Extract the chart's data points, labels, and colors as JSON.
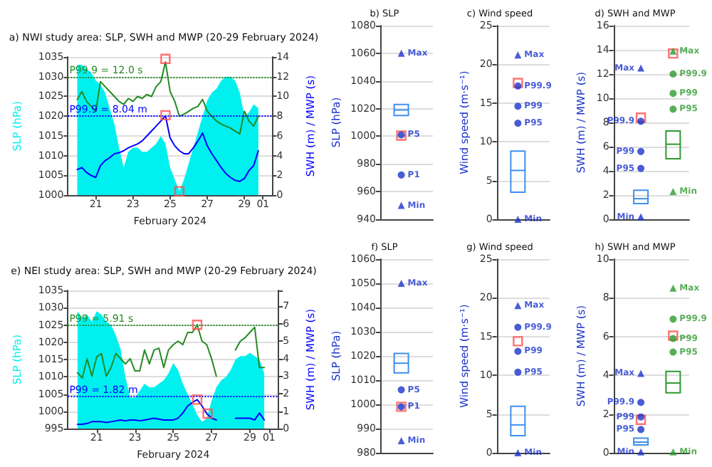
{
  "chart_data": [
    {
      "type": "area",
      "title": "a) NWI study area: SLP, SWH and MWP (20-29 February 2024)",
      "xlabel": "February 2024",
      "ylabel": "SLP (hPa)",
      "y2label": "SWH (m) / MWP (s)",
      "x": [
        "2024-02-20T00:00",
        "2024-02-20T06:00",
        "2024-02-20T12:00",
        "2024-02-20T18:00",
        "2024-02-21T00:00",
        "2024-02-21T06:00",
        "2024-02-21T12:00",
        "2024-02-21T18:00",
        "2024-02-22T00:00",
        "2024-02-22T06:00",
        "2024-02-22T12:00",
        "2024-02-22T18:00",
        "2024-02-23T00:00",
        "2024-02-23T06:00",
        "2024-02-23T12:00",
        "2024-02-23T18:00",
        "2024-02-24T00:00",
        "2024-02-24T06:00",
        "2024-02-24T12:00",
        "2024-02-24T18:00",
        "2024-02-25T00:00",
        "2024-02-25T06:00",
        "2024-02-25T12:00",
        "2024-02-25T18:00",
        "2024-02-26T00:00",
        "2024-02-26T06:00",
        "2024-02-26T12:00",
        "2024-02-26T18:00",
        "2024-02-27T00:00",
        "2024-02-27T06:00",
        "2024-02-27T12:00",
        "2024-02-27T18:00",
        "2024-02-28T00:00",
        "2024-02-28T06:00",
        "2024-02-28T12:00",
        "2024-02-28T18:00",
        "2024-02-29T00:00",
        "2024-02-29T06:00",
        "2024-02-29T12:00",
        "2024-02-29T18:00"
      ],
      "xlim": [
        "2024-02-19T12:00",
        "2024-03-01T12:00"
      ],
      "xticks": [
        {
          "value": "2024-02-21",
          "label": "21"
        },
        {
          "value": "2024-02-23",
          "label": "23"
        },
        {
          "value": "2024-02-25",
          "label": "25"
        },
        {
          "value": "2024-02-27",
          "label": "27"
        },
        {
          "value": "2024-02-29",
          "label": "29"
        },
        {
          "value": "2024-03-01",
          "label": "01"
        }
      ],
      "ylim": [
        1000,
        1035
      ],
      "yticks": [
        1000,
        1005,
        1010,
        1015,
        1020,
        1025,
        1030,
        1035
      ],
      "y2lim": [
        0,
        14
      ],
      "y2ticks": [
        0,
        2,
        4,
        6,
        8,
        10,
        12,
        14
      ],
      "grid": "y",
      "series": [
        {
          "type": "area",
          "color": "#00f0f0",
          "values": [
            1033,
            1033,
            1032,
            1031,
            1029,
            1028,
            1026,
            1022,
            1018,
            1012,
            1007,
            1011,
            1012,
            1012,
            1011,
            1011,
            1012,
            1013,
            1015,
            1013,
            1007,
            1004,
            1001,
            1004,
            1008,
            1012,
            1016,
            1020,
            1024,
            1026,
            1027,
            1029,
            1030,
            1030,
            1029,
            1026,
            1020,
            1021,
            1023,
            1022
          ]
        },
        {
          "type": "line",
          "axis": "y2",
          "color": "#0000ff",
          "values": [
            2.6,
            2.8,
            2.3,
            2.0,
            1.8,
            3.0,
            3.5,
            3.8,
            4.2,
            4.3,
            4.5,
            4.8,
            5.0,
            5.2,
            5.5,
            6.0,
            6.5,
            7.0,
            7.5,
            8.04,
            5.8,
            5.0,
            4.5,
            4.2,
            4.2,
            4.8,
            5.5,
            6.3,
            5.0,
            4.2,
            3.5,
            2.8,
            2.2,
            1.8,
            1.5,
            1.4,
            1.7,
            2.5,
            3.0,
            4.5
          ]
        },
        {
          "type": "line",
          "axis": "y2",
          "color": "#228b22",
          "values": [
            9.7,
            10.5,
            9.5,
            9.0,
            8.5,
            11.5,
            11.0,
            10.5,
            10.0,
            9.5,
            9.2,
            9.8,
            9.5,
            10.0,
            9.8,
            10.2,
            10.0,
            11.0,
            11.5,
            13.5,
            10.5,
            9.5,
            8.0,
            8.2,
            8.5,
            8.8,
            9.0,
            9.7,
            8.5,
            8.0,
            7.5,
            7.2,
            7.0,
            6.8,
            6.5,
            6.2,
            8.5,
            7.5,
            7.0,
            8.0
          ]
        },
        {
          "type": "scatter",
          "marker": "square",
          "color": "#ff4d4d",
          "x": [
            "2024-02-25T12:00"
          ],
          "values": [
            1001
          ]
        },
        {
          "type": "scatter",
          "axis": "y2",
          "marker": "square",
          "color": "#ff4d4d",
          "x": [
            "2024-02-24T18:00",
            "2024-02-24T18:00"
          ],
          "values": [
            8.1,
            13.8
          ]
        }
      ],
      "ref_lines": [
        {
          "axis": "y2",
          "value": 12,
          "label": "P99.9 = 12.0 s",
          "color": "#228b22",
          "line_style": "dotted"
        },
        {
          "axis": "y2",
          "value": 8.04,
          "label": "P99.9 = 8.04 m",
          "color": "#0000ff",
          "line_style": "dotted"
        }
      ]
    },
    {
      "type": "box",
      "title": "b) SLP",
      "ylabel": "SLP (hPa)",
      "categories": [
        null
      ],
      "ylim": [
        940,
        1080
      ],
      "yticks": [
        940,
        960,
        980,
        1000,
        1020,
        1040,
        1060,
        1080
      ],
      "grid": "y",
      "series": [
        {
          "type": "box",
          "colors": [
            "#3d8ff0"
          ],
          "boxes": [
            {
              "low": 1015,
              "q1": 1015,
              "median": 1019,
              "q3": 1023,
              "high": 1023
            }
          ]
        },
        {
          "type": "scatter",
          "name": "Max",
          "marker": "triangle",
          "colors": [
            "#1a33cc"
          ],
          "values": [
            1060
          ]
        },
        {
          "type": "scatter",
          "name": "P5",
          "marker": "circle",
          "colors": [
            "#1a33cc"
          ],
          "values": [
            1001
          ]
        },
        {
          "type": "scatter",
          "name": "P1",
          "marker": "circle",
          "colors": [
            "#1a33cc"
          ],
          "values": [
            972
          ]
        },
        {
          "type": "scatter",
          "name": "Min",
          "marker": "triangle",
          "colors": [
            "#1a33cc"
          ],
          "values": [
            950
          ]
        },
        {
          "type": "scatter",
          "marker": "square",
          "colors": [
            "#ff4d4d"
          ],
          "values": [
            1000.5
          ]
        }
      ]
    },
    {
      "type": "box",
      "title": "c) Wind speed",
      "ylabel": "Wind speed (m·s⁻¹)",
      "categories": [
        null
      ],
      "ylim": [
        0,
        25
      ],
      "yticks": [
        0,
        5,
        10,
        15,
        20,
        25
      ],
      "grid": "y",
      "series": [
        {
          "type": "box",
          "colors": [
            "#3d8ff0"
          ],
          "boxes": [
            {
              "low": 3.5,
              "q1": 3.5,
              "median": 6.3,
              "q3": 8.8,
              "high": 8.8
            }
          ]
        },
        {
          "type": "scatter",
          "name": "Max",
          "marker": "triangle",
          "colors": [
            "#1a33cc"
          ],
          "values": [
            21.2
          ]
        },
        {
          "type": "scatter",
          "name": "P99.9",
          "marker": "circle",
          "colors": [
            "#1a33cc"
          ],
          "values": [
            17.2
          ]
        },
        {
          "type": "scatter",
          "name": "P99",
          "marker": "circle",
          "colors": [
            "#1a33cc"
          ],
          "values": [
            14.6
          ]
        },
        {
          "type": "scatter",
          "name": "P95",
          "marker": "circle",
          "colors": [
            "#1a33cc"
          ],
          "values": [
            12.4
          ]
        },
        {
          "type": "scatter",
          "name": "Min",
          "marker": "triangle",
          "colors": [
            "#1a33cc"
          ],
          "values": [
            0
          ]
        },
        {
          "type": "scatter",
          "marker": "square",
          "colors": [
            "#ff4d4d"
          ],
          "values": [
            17.6
          ]
        }
      ]
    },
    {
      "type": "box",
      "title": "d) SWH and MWP",
      "ylabel": "SWH (m) / MWP (s)",
      "categories": [
        null,
        null
      ],
      "ylim": [
        0,
        16
      ],
      "yticks": [
        0,
        2,
        4,
        6,
        8,
        10,
        12,
        14,
        16
      ],
      "grid": "y",
      "series": [
        {
          "type": "box",
          "colors": [
            "#3d8ff0",
            "#2e9a2e"
          ],
          "boxes": [
            {
              "low": 1.3,
              "q1": 1.3,
              "median": 1.7,
              "q3": 2.4,
              "high": 2.4
            },
            {
              "low": 5.0,
              "q1": 5.0,
              "median": 6.2,
              "q3": 7.3,
              "high": 7.3
            }
          ]
        },
        {
          "type": "scatter",
          "name": "Max",
          "marker": "triangle",
          "colors": [
            "#1a33cc",
            "#2e9a2e"
          ],
          "values": [
            12.5,
            13.9
          ]
        },
        {
          "type": "scatter",
          "name": "P99.9",
          "marker": "circle",
          "colors": [
            "#1a33cc",
            "#2e9a2e"
          ],
          "values": [
            8.1,
            12.0
          ]
        },
        {
          "type": "scatter",
          "name": "P99",
          "marker": "circle",
          "colors": [
            "#1a33cc",
            "#2e9a2e"
          ],
          "values": [
            5.6,
            10.4
          ]
        },
        {
          "type": "scatter",
          "name": "P95",
          "marker": "circle",
          "colors": [
            "#1a33cc",
            "#2e9a2e"
          ],
          "values": [
            4.2,
            9.1
          ]
        },
        {
          "type": "scatter",
          "name": "Min",
          "marker": "triangle",
          "colors": [
            "#1a33cc",
            "#2e9a2e"
          ],
          "values": [
            0.2,
            2.3
          ]
        },
        {
          "type": "scatter",
          "marker": "square",
          "colors": [
            "#ff4d4d",
            "#ff4d4d"
          ],
          "values": [
            8.4,
            13.7
          ]
        }
      ]
    },
    {
      "type": "area",
      "title": "e) NEI study area: SLP, SWH and MWP (20-29 February 2024)",
      "xlabel": "February 2024",
      "ylabel": "SLP (hPa)",
      "y2label": "SWH (m) / MWP (s)",
      "x": [
        "2024-02-20T00:00",
        "2024-02-20T06:00",
        "2024-02-20T12:00",
        "2024-02-20T18:00",
        "2024-02-21T00:00",
        "2024-02-21T06:00",
        "2024-02-21T12:00",
        "2024-02-21T18:00",
        "2024-02-22T00:00",
        "2024-02-22T06:00",
        "2024-02-22T12:00",
        "2024-02-22T18:00",
        "2024-02-23T00:00",
        "2024-02-23T06:00",
        "2024-02-23T12:00",
        "2024-02-23T18:00",
        "2024-02-24T00:00",
        "2024-02-24T06:00",
        "2024-02-24T12:00",
        "2024-02-24T18:00",
        "2024-02-25T00:00",
        "2024-02-25T06:00",
        "2024-02-25T12:00",
        "2024-02-25T18:00",
        "2024-02-26T00:00",
        "2024-02-26T06:00",
        "2024-02-26T12:00",
        "2024-02-26T18:00",
        "2024-02-27T00:00",
        "2024-02-27T06:00",
        "2024-02-27T12:00",
        "2024-02-27T18:00",
        "2024-02-28T00:00",
        "2024-02-28T06:00",
        "2024-02-28T12:00",
        "2024-02-28T18:00",
        "2024-02-29T00:00",
        "2024-02-29T06:00",
        "2024-02-29T12:00",
        "2024-02-29T18:00"
      ],
      "xlim": [
        "2024-02-19T12:00",
        "2024-03-01T12:00"
      ],
      "xticks": [
        {
          "value": "2024-02-21",
          "label": "21"
        },
        {
          "value": "2024-02-23",
          "label": "23"
        },
        {
          "value": "2024-02-25",
          "label": "25"
        },
        {
          "value": "2024-02-27",
          "label": "27"
        },
        {
          "value": "2024-02-29",
          "label": "29"
        },
        {
          "value": "2024-03-01",
          "label": "01"
        }
      ],
      "ylim": [
        995,
        1035
      ],
      "yticks": [
        995,
        1000,
        1005,
        1010,
        1015,
        1020,
        1025,
        1030,
        1035
      ],
      "y2lim": [
        0,
        7.9
      ],
      "y2ticks": [
        0,
        1,
        2,
        3,
        4,
        5,
        6,
        7
      ],
      "grid": "y",
      "series": [
        {
          "type": "area",
          "color": "#00f0f0",
          "values": [
            1029,
            1027,
            1028,
            1026,
            1029,
            1028,
            1026,
            1025,
            1022,
            1018,
            1010,
            1004,
            1004,
            1006,
            1008,
            1007,
            1007,
            1008,
            1009,
            1011,
            1014,
            1012,
            1008,
            1005,
            1002,
            999,
            997,
            998,
            1003,
            1007,
            1009,
            1010,
            1012,
            1015,
            1016,
            1016,
            1017,
            1016,
            1015,
            1011
          ]
        },
        {
          "type": "line",
          "axis": "y2",
          "color": "#0000ff",
          "values": [
            0.25,
            0.25,
            0.3,
            0.4,
            0.4,
            0.4,
            0.35,
            0.4,
            0.45,
            0.5,
            0.45,
            0.5,
            0.5,
            0.45,
            0.5,
            0.55,
            0.6,
            0.55,
            0.5,
            0.5,
            0.5,
            0.6,
            0.9,
            1.3,
            1.5,
            1.66,
            1.3,
            0.86,
            0.6,
            0.5,
            null,
            null,
            null,
            0.6,
            0.6,
            0.6,
            0.6,
            0.5,
            0.9,
            0.5
          ]
        },
        {
          "type": "line",
          "axis": "y2",
          "color": "#228b22",
          "values": [
            3.2,
            2.9,
            4.0,
            3.0,
            4.1,
            4.3,
            3.0,
            3.5,
            4.3,
            4.0,
            3.7,
            4.0,
            3.3,
            3.3,
            4.5,
            3.7,
            4.5,
            4.6,
            3.5,
            4.5,
            4.8,
            5.0,
            4.8,
            5.5,
            5.5,
            5.94,
            5.0,
            4.8,
            4.0,
            3.0,
            null,
            null,
            null,
            4.5,
            5.0,
            5.2,
            5.5,
            5.8,
            3.5,
            3.5
          ]
        },
        {
          "type": "scatter",
          "axis": "y2",
          "marker": "square",
          "color": "#ff4d4d",
          "x": [
            "2024-02-26T06:00",
            "2024-02-26T19:00",
            "2024-02-26T06:00"
          ],
          "values": [
            1.66,
            0.86,
            5.94
          ]
        }
      ],
      "ref_lines": [
        {
          "axis": "y2",
          "value": 5.91,
          "label": "P99 = 5.91 s",
          "color": "#228b22",
          "line_style": "dotted"
        },
        {
          "axis": "y2",
          "value": 1.82,
          "label": "P99 = 1.82 m",
          "color": "#0000ff",
          "line_style": "dotted"
        }
      ]
    },
    {
      "type": "box",
      "title": "f) SLP",
      "ylabel": "SLP (hPa)",
      "categories": [
        null
      ],
      "ylim": [
        980,
        1060
      ],
      "yticks": [
        980,
        990,
        1000,
        1010,
        1020,
        1030,
        1040,
        1050,
        1060
      ],
      "grid": "y",
      "series": [
        {
          "type": "box",
          "colors": [
            "#3d8ff0"
          ],
          "boxes": [
            {
              "low": 1013,
              "q1": 1013,
              "median": 1017,
              "q3": 1021,
              "high": 1021
            }
          ]
        },
        {
          "type": "scatter",
          "name": "Max",
          "marker": "triangle",
          "colors": [
            "#1a33cc"
          ],
          "values": [
            1050
          ]
        },
        {
          "type": "scatter",
          "name": "P5",
          "marker": "circle",
          "colors": [
            "#1a33cc"
          ],
          "values": [
            1006
          ]
        },
        {
          "type": "scatter",
          "name": "P1",
          "marker": "circle",
          "colors": [
            "#1a33cc"
          ],
          "values": [
            999
          ]
        },
        {
          "type": "scatter",
          "name": "Min",
          "marker": "triangle",
          "colors": [
            "#1a33cc"
          ],
          "values": [
            985
          ]
        },
        {
          "type": "scatter",
          "marker": "square",
          "colors": [
            "#ff4d4d"
          ],
          "values": [
            999
          ]
        }
      ]
    },
    {
      "type": "box",
      "title": "g) Wind speed",
      "ylabel": "Wind speed (m·s⁻¹)",
      "categories": [
        null
      ],
      "ylim": [
        0,
        25
      ],
      "yticks": [
        0,
        5,
        10,
        15,
        20,
        25
      ],
      "grid": "y",
      "series": [
        {
          "type": "box",
          "colors": [
            "#3d8ff0"
          ],
          "boxes": [
            {
              "low": 2.2,
              "q1": 2.2,
              "median": 3.6,
              "q3": 6.0,
              "high": 6.0
            }
          ]
        },
        {
          "type": "scatter",
          "name": "Max",
          "marker": "triangle",
          "colors": [
            "#1a33cc"
          ],
          "values": [
            19.0
          ]
        },
        {
          "type": "scatter",
          "name": "P99.9",
          "marker": "circle",
          "colors": [
            "#1a33cc"
          ],
          "values": [
            16.2
          ]
        },
        {
          "type": "scatter",
          "name": "P99",
          "marker": "circle",
          "colors": [
            "#1a33cc"
          ],
          "values": [
            13.1
          ]
        },
        {
          "type": "scatter",
          "name": "P95",
          "marker": "circle",
          "colors": [
            "#1a33cc"
          ],
          "values": [
            10.4
          ]
        },
        {
          "type": "scatter",
          "name": "Min",
          "marker": "triangle",
          "colors": [
            "#1a33cc"
          ],
          "values": [
            0
          ]
        },
        {
          "type": "scatter",
          "marker": "square",
          "colors": [
            "#ff4d4d"
          ],
          "values": [
            14.4
          ]
        }
      ]
    },
    {
      "type": "box",
      "title": "h) SWH and MWP",
      "ylabel": "SWH (m) / MWP (s)",
      "categories": [
        null,
        null
      ],
      "ylim": [
        0,
        10
      ],
      "yticks": [
        0,
        2,
        4,
        6,
        8,
        10
      ],
      "grid": "y",
      "series": [
        {
          "type": "box",
          "colors": [
            "#3d8ff0",
            "#2e9a2e"
          ],
          "boxes": [
            {
              "low": 0.4,
              "q1": 0.4,
              "median": 0.55,
              "q3": 0.75,
              "high": 0.75
            },
            {
              "low": 3.1,
              "q1": 3.1,
              "median": 3.6,
              "q3": 4.2,
              "high": 4.2
            }
          ]
        },
        {
          "type": "scatter",
          "name": "Max",
          "marker": "triangle",
          "colors": [
            "#1a33cc",
            "#2e9a2e"
          ],
          "values": [
            4.1,
            8.5
          ]
        },
        {
          "type": "scatter",
          "name": "P99.9",
          "marker": "circle",
          "colors": [
            "#1a33cc",
            "#2e9a2e"
          ],
          "values": [
            2.6,
            6.9
          ]
        },
        {
          "type": "scatter",
          "name": "P99",
          "marker": "circle",
          "colors": [
            "#1a33cc",
            "#2e9a2e"
          ],
          "values": [
            1.85,
            5.9
          ]
        },
        {
          "type": "scatter",
          "name": "P95",
          "marker": "circle",
          "colors": [
            "#1a33cc",
            "#2e9a2e"
          ],
          "values": [
            1.2,
            5.2
          ]
        },
        {
          "type": "scatter",
          "name": "Min",
          "marker": "triangle",
          "colors": [
            "#1a33cc",
            "#2e9a2e"
          ],
          "values": [
            0.05,
            0.05
          ]
        },
        {
          "type": "scatter",
          "marker": "square",
          "colors": [
            "#ff4d4d",
            "#ff4d4d"
          ],
          "values": [
            1.7,
            6.05
          ]
        }
      ]
    }
  ]
}
